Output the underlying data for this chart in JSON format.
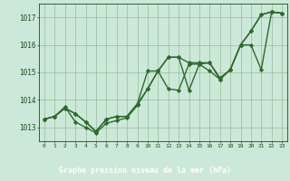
{
  "title": "Graphe pression niveau de la mer (hPa)",
  "x": [
    0,
    1,
    2,
    3,
    4,
    5,
    6,
    7,
    8,
    9,
    10,
    11,
    12,
    13,
    14,
    15,
    16,
    17,
    18,
    19,
    20,
    21,
    22,
    23
  ],
  "series1": [
    1013.3,
    1013.4,
    1013.7,
    1013.5,
    1013.2,
    1012.85,
    1013.3,
    1013.4,
    1013.4,
    1013.85,
    1015.05,
    1015.05,
    1015.55,
    1015.55,
    1015.35,
    1015.35,
    1015.35,
    1014.75,
    1015.1,
    1016.0,
    1016.5,
    1017.1,
    1017.2,
    1017.15
  ],
  "series2": [
    1013.3,
    1013.4,
    1013.7,
    1013.5,
    1013.2,
    1012.85,
    1013.3,
    1013.4,
    1013.4,
    1013.85,
    1014.4,
    1015.05,
    1015.55,
    1015.55,
    1014.35,
    1015.3,
    1015.35,
    1014.8,
    1015.1,
    1016.0,
    1016.5,
    1017.1,
    1017.2,
    1017.15
  ],
  "series3": [
    1013.3,
    1013.4,
    1013.75,
    1013.2,
    1013.0,
    1012.8,
    1013.15,
    1013.25,
    1013.35,
    1013.8,
    1014.4,
    1015.05,
    1014.4,
    1014.35,
    1015.3,
    1015.3,
    1015.05,
    1014.75,
    1015.1,
    1016.0,
    1016.0,
    1015.1,
    1017.2,
    1017.15
  ],
  "line_color": "#2d6a2d",
  "bg_color": "#cce8d8",
  "plot_bg": "#cce8d8",
  "grid_color": "#99bb99",
  "text_color": "#1a4a1a",
  "label_bg": "#1a4a1a",
  "label_fg": "#ffffff",
  "ylim": [
    1012.5,
    1017.5
  ],
  "yticks": [
    1013,
    1014,
    1015,
    1016,
    1017
  ],
  "marker": "D",
  "marker_size": 2.2,
  "linewidth": 1.0
}
